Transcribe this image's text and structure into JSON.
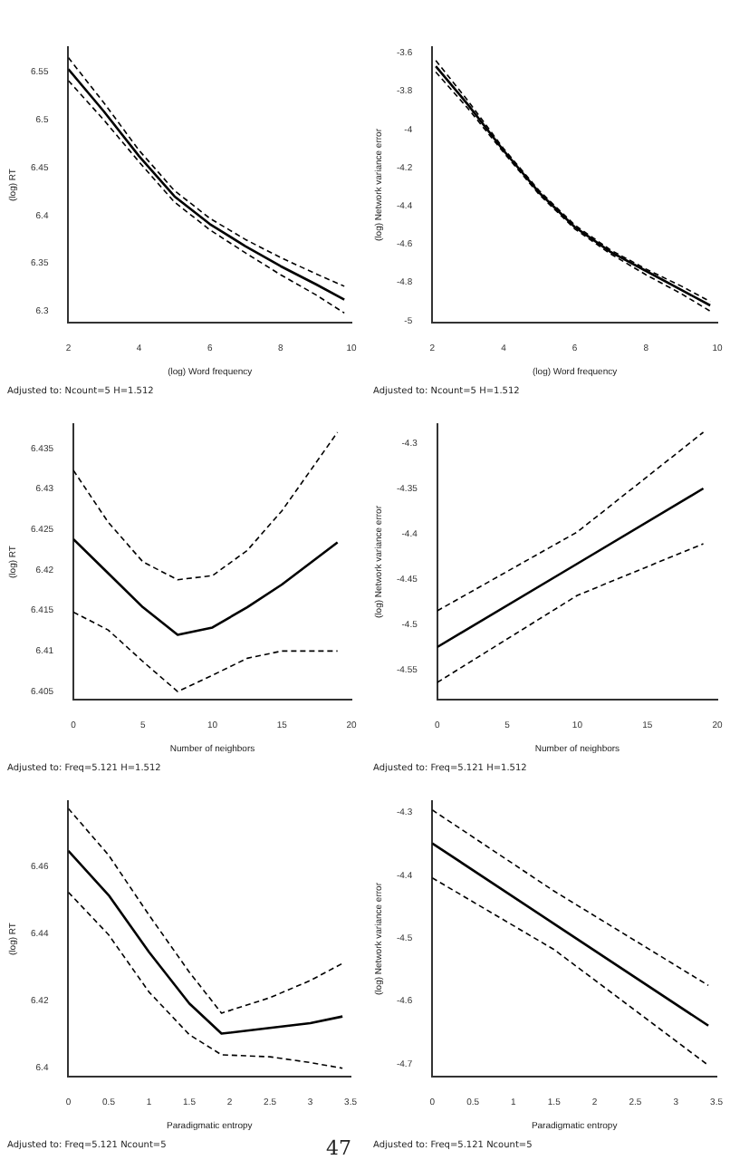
{
  "chart_data": [
    {
      "type": "line",
      "xlabel": "(log) Word frequency",
      "ylabel": "(log) RT",
      "xlim": [
        2,
        10
      ],
      "xticks": [
        2,
        4,
        6,
        8,
        10
      ],
      "ylim": [
        6.288,
        6.576
      ],
      "yticks": [
        6.3,
        6.35,
        6.4,
        6.45,
        6.5,
        6.55
      ],
      "grid": false,
      "legend": false,
      "annotations": [
        "Adjusted to: Ncount=5 H=1.512"
      ],
      "series": [
        {
          "color": "#000000",
          "line_style": "solid",
          "x": [
            2,
            3,
            4,
            5,
            6,
            7,
            8,
            9,
            9.8
          ],
          "values": [
            6.553,
            6.509,
            6.462,
            6.42,
            6.391,
            6.368,
            6.347,
            6.328,
            6.312
          ]
        },
        {
          "color": "#000000",
          "line_style": "dashed",
          "x": [
            2,
            3,
            4,
            5,
            6,
            7,
            8,
            9,
            9.8
          ],
          "values": [
            6.565,
            6.518,
            6.468,
            6.426,
            6.397,
            6.375,
            6.356,
            6.339,
            6.326
          ]
        },
        {
          "color": "#000000",
          "line_style": "dashed",
          "x": [
            2,
            3,
            4,
            5,
            6,
            7,
            8,
            9,
            9.8
          ],
          "values": [
            6.541,
            6.5,
            6.456,
            6.414,
            6.385,
            6.361,
            6.338,
            6.317,
            6.298
          ]
        }
      ]
    },
    {
      "type": "line",
      "xlabel": "(log) Word frequency",
      "ylabel": "(log) Network variance error",
      "xlim": [
        2,
        10
      ],
      "xticks": [
        2,
        4,
        6,
        8,
        10
      ],
      "ylim": [
        -5.01,
        -3.57
      ],
      "yticks": [
        -5,
        -4.8,
        -4.6,
        -4.4,
        -4.2,
        -4,
        -3.8,
        -3.6
      ],
      "grid": false,
      "legend": false,
      "annotations": [
        "Adjusted to: Ncount=5 H=1.512"
      ],
      "series": [
        {
          "color": "#000000",
          "line_style": "solid",
          "x": [
            2.1,
            3,
            4,
            5,
            6,
            7,
            8,
            9,
            9.8
          ],
          "values": [
            -3.67,
            -3.87,
            -4.11,
            -4.33,
            -4.51,
            -4.64,
            -4.74,
            -4.84,
            -4.92
          ]
        },
        {
          "color": "#000000",
          "line_style": "dashed",
          "x": [
            2.1,
            3,
            4,
            5,
            6,
            7,
            8,
            9,
            9.8
          ],
          "values": [
            -3.64,
            -3.85,
            -4.1,
            -4.32,
            -4.5,
            -4.63,
            -4.73,
            -4.82,
            -4.9
          ]
        },
        {
          "color": "#000000",
          "line_style": "dashed",
          "x": [
            2.1,
            3,
            4,
            5,
            6,
            7,
            8,
            9,
            9.8
          ],
          "values": [
            -3.7,
            -3.89,
            -4.12,
            -4.34,
            -4.52,
            -4.65,
            -4.76,
            -4.86,
            -4.95
          ]
        }
      ]
    },
    {
      "type": "line",
      "xlabel": "Number of neighbors",
      "ylabel": "(log) RT",
      "xlim": [
        0,
        20
      ],
      "xticks": [
        0,
        5,
        10,
        15,
        20
      ],
      "ylim": [
        6.404,
        6.438
      ],
      "yticks": [
        6.405,
        6.41,
        6.415,
        6.42,
        6.425,
        6.43,
        6.435
      ],
      "grid": false,
      "legend": false,
      "annotations": [
        "Adjusted to: Freq=5.121 H=1.512"
      ],
      "series": [
        {
          "color": "#000000",
          "line_style": "solid",
          "x": [
            0,
            2.5,
            5,
            7.5,
            10,
            12.5,
            15,
            19
          ],
          "values": [
            6.4238,
            6.4196,
            6.4154,
            6.412,
            6.4129,
            6.4154,
            6.4182,
            6.4234
          ]
        },
        {
          "color": "#000000",
          "line_style": "dashed",
          "x": [
            0,
            2.5,
            5,
            7.5,
            10,
            12.5,
            15,
            19
          ],
          "values": [
            6.4323,
            6.4259,
            6.421,
            6.4188,
            6.4193,
            6.4224,
            6.4273,
            6.437
          ]
        },
        {
          "color": "#000000",
          "line_style": "dashed",
          "x": [
            0,
            2.5,
            5,
            7.5,
            10,
            12.5,
            15,
            19
          ],
          "values": [
            6.4148,
            6.4126,
            6.4087,
            6.405,
            6.407,
            6.4091,
            6.41,
            6.41
          ]
        }
      ]
    },
    {
      "type": "line",
      "xlabel": "Number of neighbors",
      "ylabel": "(log) Network variance error",
      "xlim": [
        0,
        20
      ],
      "xticks": [
        0,
        5,
        10,
        15,
        20
      ],
      "ylim": [
        -4.583,
        -4.279
      ],
      "yticks": [
        -4.55,
        -4.5,
        -4.45,
        -4.4,
        -4.35,
        -4.3
      ],
      "grid": false,
      "legend": false,
      "annotations": [
        "Adjusted to: Freq=5.121 H=1.512"
      ],
      "series": [
        {
          "color": "#000000",
          "line_style": "solid",
          "x": [
            0,
            10,
            19
          ],
          "values": [
            -4.525,
            -4.433,
            -4.35
          ]
        },
        {
          "color": "#000000",
          "line_style": "dashed",
          "x": [
            0,
            10,
            19
          ],
          "values": [
            -4.485,
            -4.398,
            -4.288
          ]
        },
        {
          "color": "#000000",
          "line_style": "dashed",
          "x": [
            0,
            10,
            19
          ],
          "values": [
            -4.564,
            -4.468,
            -4.411
          ]
        }
      ]
    },
    {
      "type": "line",
      "xlabel": "Paradigmatic entropy",
      "ylabel": "(log) RT",
      "xlim": [
        0,
        3.5
      ],
      "xticks": [
        0,
        0.5,
        1,
        1.5,
        2,
        2.5,
        3,
        3.5
      ],
      "ylim": [
        6.3975,
        6.4795
      ],
      "yticks": [
        6.4,
        6.42,
        6.44,
        6.46
      ],
      "grid": false,
      "legend": false,
      "annotations": [
        "Adjusted to: Freq=5.121 Ncount=5",
        "47"
      ],
      "series": [
        {
          "color": "#000000",
          "line_style": "solid",
          "x": [
            0,
            0.5,
            1,
            1.5,
            1.9,
            2.5,
            3,
            3.4
          ],
          "values": [
            6.4647,
            6.4515,
            6.4346,
            6.4193,
            6.4103,
            6.412,
            6.4134,
            6.4154
          ]
        },
        {
          "color": "#000000",
          "line_style": "dashed",
          "x": [
            0,
            0.5,
            1,
            1.5,
            1.9,
            2.5,
            3,
            3.4
          ],
          "values": [
            6.4773,
            6.4634,
            6.4456,
            6.4286,
            6.4164,
            6.421,
            6.4261,
            6.4312
          ]
        },
        {
          "color": "#000000",
          "line_style": "dashed",
          "x": [
            0,
            0.5,
            1,
            1.5,
            1.9,
            2.5,
            3,
            3.4
          ],
          "values": [
            6.4524,
            6.4397,
            6.4227,
            6.41,
            6.404,
            6.4034,
            6.4017,
            6.4
          ]
        }
      ]
    },
    {
      "type": "line",
      "xlabel": "Paradigmatic entropy",
      "ylabel": "(log) Network variance error",
      "xlim": [
        0,
        3.5
      ],
      "xticks": [
        0,
        0.5,
        1,
        1.5,
        2,
        2.5,
        3,
        3.5
      ],
      "ylim": [
        -4.72,
        -4.282
      ],
      "yticks": [
        -4.7,
        -4.6,
        -4.5,
        -4.4,
        -4.3
      ],
      "grid": false,
      "legend": false,
      "annotations": [
        "Adjusted to: Freq=5.121 Ncount=5"
      ],
      "series": [
        {
          "color": "#000000",
          "line_style": "solid",
          "x": [
            0,
            1.5,
            3.4
          ],
          "values": [
            -4.349,
            -4.477,
            -4.639
          ]
        },
        {
          "color": "#000000",
          "line_style": "dashed",
          "x": [
            0,
            1.5,
            3.4
          ],
          "values": [
            -4.296,
            -4.425,
            -4.575
          ]
        },
        {
          "color": "#000000",
          "line_style": "dashed",
          "x": [
            0,
            1.5,
            3.4
          ],
          "values": [
            -4.404,
            -4.518,
            -4.702
          ]
        }
      ]
    }
  ]
}
